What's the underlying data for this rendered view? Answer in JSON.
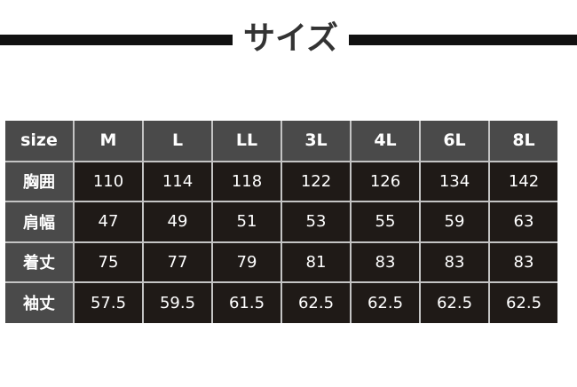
{
  "title": "サイズ",
  "table": {
    "header": [
      "size",
      "M",
      "L",
      "LL",
      "3L",
      "4L",
      "6L",
      "8L"
    ],
    "rows": [
      {
        "label": "胸囲",
        "values": [
          "110",
          "114",
          "118",
          "122",
          "126",
          "134",
          "142"
        ]
      },
      {
        "label": "肩幅",
        "values": [
          "47",
          "49",
          "51",
          "53",
          "55",
          "59",
          "63"
        ]
      },
      {
        "label": "着丈",
        "values": [
          "75",
          "77",
          "79",
          "81",
          "83",
          "83",
          "83"
        ]
      },
      {
        "label": "袖丈",
        "values": [
          "57.5",
          "59.5",
          "61.5",
          "62.5",
          "62.5",
          "62.5",
          "62.5"
        ]
      }
    ]
  }
}
